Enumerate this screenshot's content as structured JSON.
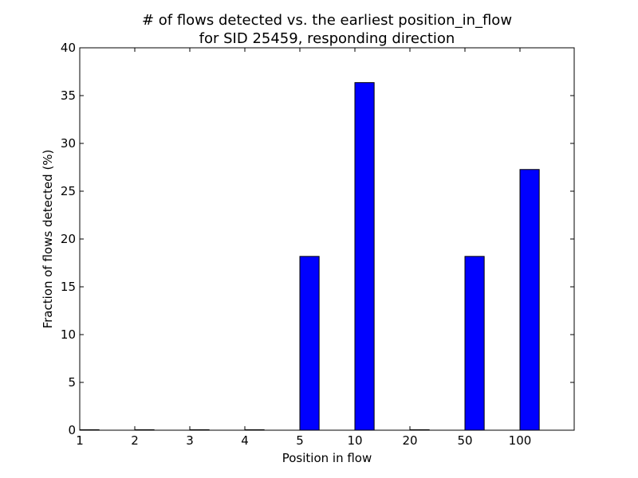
{
  "chart_data": {
    "type": "bar",
    "title": "# of flows detected vs. the earliest position_in_flow",
    "subtitle": "for SID 25459, responding direction",
    "xlabel": "Position in flow",
    "ylabel": "Fraction of flows detected (%)",
    "categories": [
      "1",
      "2",
      "3",
      "4",
      "5",
      "10",
      "20",
      "50",
      "100"
    ],
    "values": [
      0,
      0,
      0,
      0,
      18.18,
      36.36,
      0,
      18.18,
      27.27
    ],
    "ylim": [
      0,
      40
    ],
    "yticks": [
      0,
      5,
      10,
      15,
      20,
      25,
      30,
      35,
      40
    ],
    "bar_color": "#0000ff",
    "bar_edge_color": "#000000",
    "grid": false,
    "legend": "none"
  }
}
